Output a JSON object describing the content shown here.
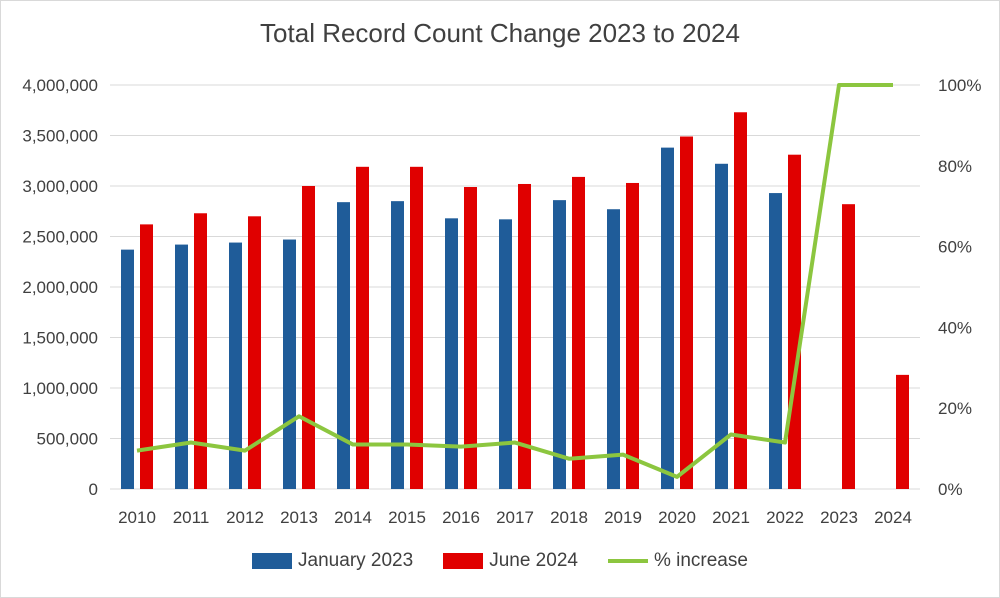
{
  "chart_data": {
    "type": "bar",
    "title": "Total Record Count Change 2023 to 2024",
    "categories": [
      "2010",
      "2011",
      "2012",
      "2013",
      "2014",
      "2015",
      "2016",
      "2017",
      "2018",
      "2019",
      "2020",
      "2021",
      "2022",
      "2023",
      "2024"
    ],
    "series": [
      {
        "name": "January 2023",
        "type": "bar",
        "axis": "left",
        "color": "#1f5c99",
        "values": [
          2370000,
          2420000,
          2440000,
          2470000,
          2840000,
          2850000,
          2680000,
          2670000,
          2860000,
          2770000,
          3380000,
          3220000,
          2930000,
          null,
          null
        ]
      },
      {
        "name": "June 2024",
        "type": "bar",
        "axis": "left",
        "color": "#e00000",
        "values": [
          2620000,
          2730000,
          2700000,
          3000000,
          3190000,
          3190000,
          2990000,
          3020000,
          3090000,
          3030000,
          3490000,
          3730000,
          3310000,
          2820000,
          1130000
        ]
      },
      {
        "name": "% increase",
        "type": "line",
        "axis": "right",
        "color": "#8cc63f",
        "values": [
          9.5,
          11.5,
          9.5,
          18,
          11,
          11,
          10.5,
          11.5,
          7.5,
          8.5,
          3,
          13.5,
          11.5,
          100,
          100
        ]
      }
    ],
    "y_left": {
      "min": 0,
      "max": 4000000,
      "ticks": [
        "0",
        "500,000",
        "1,000,000",
        "1,500,000",
        "2,000,000",
        "2,500,000",
        "3,000,000",
        "3,500,000",
        "4,000,000"
      ]
    },
    "y_right": {
      "min": 0,
      "max": 100,
      "ticks": [
        "0%",
        "20%",
        "40%",
        "60%",
        "80%",
        "100%"
      ]
    },
    "grid": true,
    "legend_position": "bottom"
  }
}
